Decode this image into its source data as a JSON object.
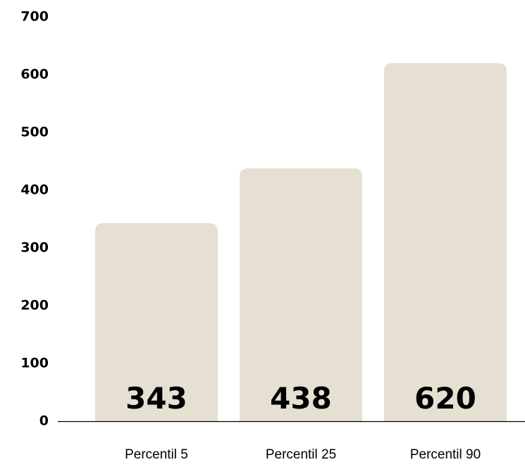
{
  "chart_data": {
    "type": "bar",
    "title": "",
    "xlabel": "",
    "ylabel": "",
    "categories": [
      "Percentil 5",
      "Percentil 25",
      "Percentil 90"
    ],
    "values": [
      343,
      438,
      620
    ],
    "data_labels": [
      "343",
      "438",
      "620"
    ],
    "ylim": [
      0,
      700
    ],
    "yticks": [
      0,
      100,
      200,
      300,
      400,
      500,
      600,
      700
    ],
    "ytick_labels": [
      "0",
      "100",
      "200",
      "300",
      "400",
      "500",
      "600",
      "700"
    ],
    "grid": false,
    "legend": "none",
    "colors": {
      "bar": "#e6e0d3",
      "text": "#000000",
      "axis": "#000000"
    }
  }
}
